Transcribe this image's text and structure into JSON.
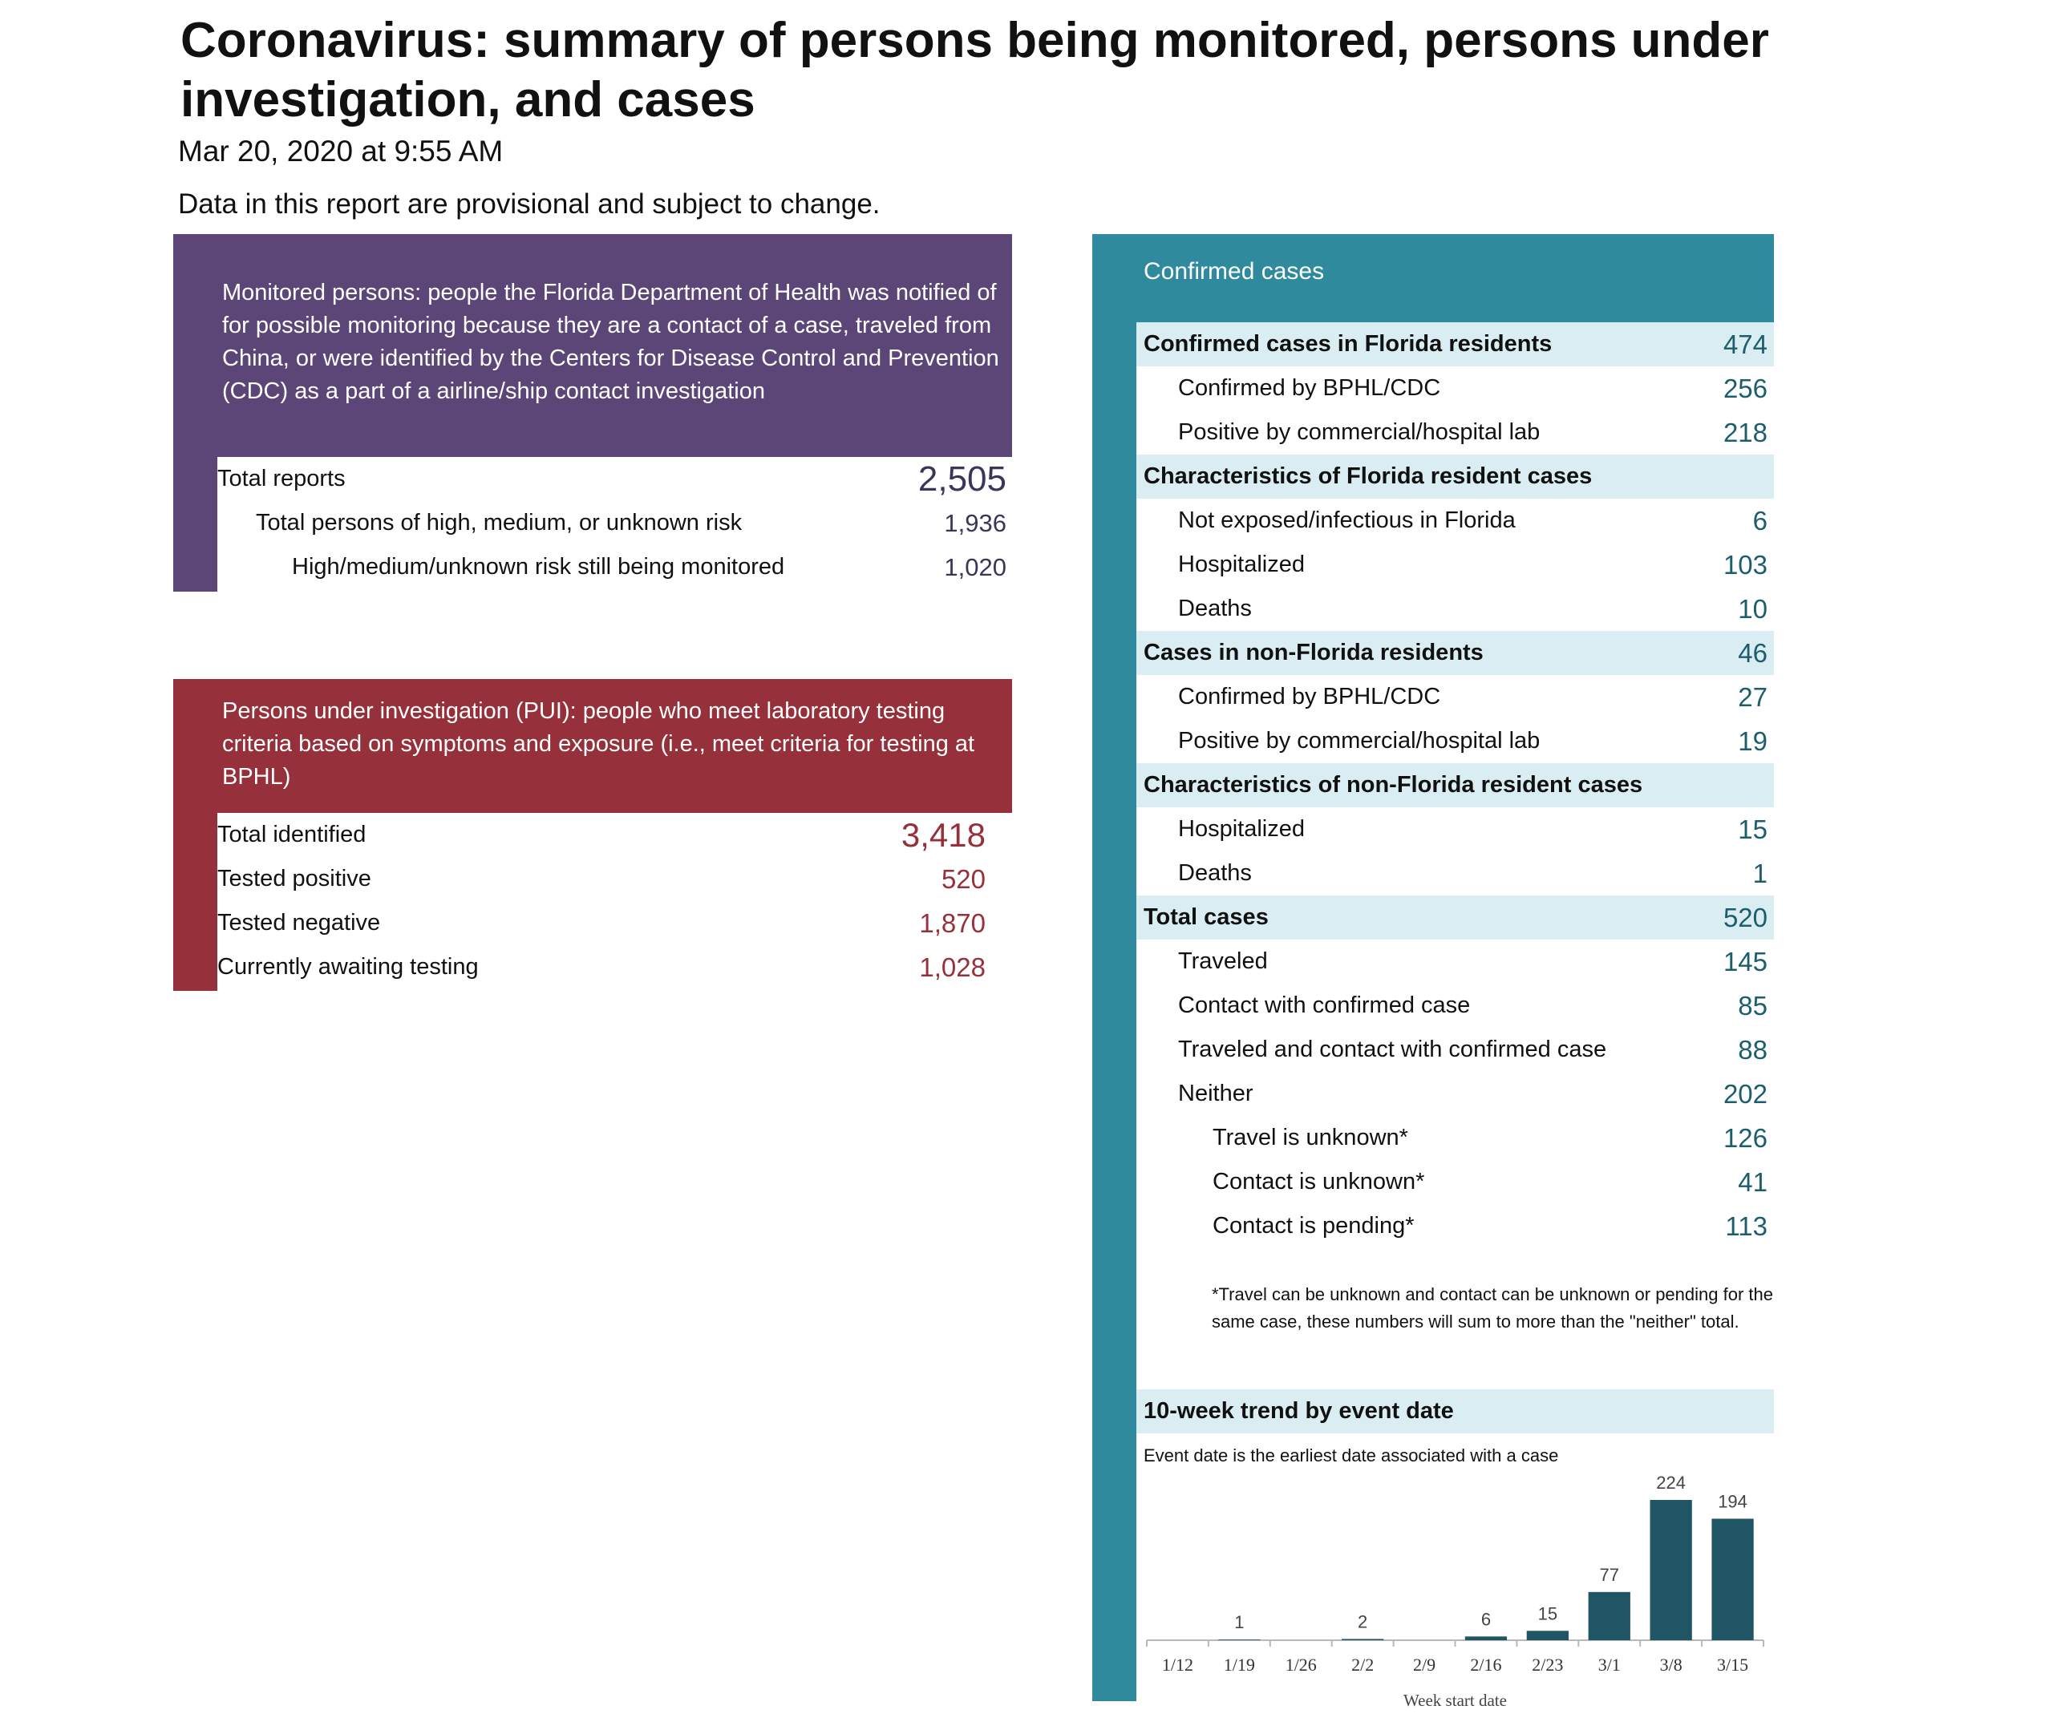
{
  "title": "Coronavirus: summary of persons being monitored, persons under investigation, and cases",
  "timestamp": "Mar 20, 2020 at 9:55 AM",
  "disclaimer": "Data in this report are provisional and subject to change.",
  "monitored": {
    "description": "Monitored persons: people the Florida Department of Health was notified of for possible monitoring because they are a contact of a case, traveled from China, or were identified by the Centers for Disease Control and Prevention (CDC) as a part of a airline/ship contact investigation",
    "total_label": "Total reports",
    "total_value": "2,505",
    "risk_label": "Total persons of high, medium, or unknown risk",
    "risk_value": "1,936",
    "still_label": "High/medium/unknown risk still being monitored",
    "still_value": "1,020"
  },
  "pui": {
    "description": "Persons under investigation (PUI): people who meet laboratory testing criteria based on symptoms and exposure (i.e., meet criteria for testing at BPHL)",
    "rows": [
      {
        "label": "Total identified",
        "value": "3,418"
      },
      {
        "label": "Tested positive",
        "value": "520"
      },
      {
        "label": "Tested negative",
        "value": "1,870"
      },
      {
        "label": "Currently awaiting testing",
        "value": "1,028"
      }
    ]
  },
  "confirmed": {
    "header": "Confirmed cases",
    "rows": [
      {
        "label": "Confirmed cases in Florida residents",
        "value": "474"
      },
      {
        "label": "Confirmed by BPHL/CDC",
        "value": "256"
      },
      {
        "label": "Positive by commercial/hospital lab",
        "value": "218"
      },
      {
        "label": "Characteristics of Florida resident cases",
        "value": ""
      },
      {
        "label": "Not exposed/infectious in Florida",
        "value": "6"
      },
      {
        "label": "Hospitalized",
        "value": "103"
      },
      {
        "label": "Deaths",
        "value": "10"
      },
      {
        "label": "Cases in non-Florida residents",
        "value": "46"
      },
      {
        "label": "Confirmed by BPHL/CDC",
        "value": "27"
      },
      {
        "label": "Positive by commercial/hospital lab",
        "value": "19"
      },
      {
        "label": "Characteristics of non-Florida resident cases",
        "value": ""
      },
      {
        "label": "Hospitalized",
        "value": "15"
      },
      {
        "label": "Deaths",
        "value": "1"
      },
      {
        "label": "Total cases",
        "value": "520"
      },
      {
        "label": "Traveled",
        "value": "145"
      },
      {
        "label": "Contact with confirmed case",
        "value": "85"
      },
      {
        "label": "Traveled and contact with confirmed case",
        "value": "88"
      },
      {
        "label": "Neither",
        "value": "202"
      },
      {
        "label": "Travel is unknown*",
        "value": "126"
      },
      {
        "label": "Contact is unknown*",
        "value": "41"
      },
      {
        "label": "Contact is pending*",
        "value": "113"
      }
    ],
    "footnote": "*Travel can be unknown and contact can be unknown or pending for the same case, these numbers will sum to more than the \"neither\" total."
  },
  "trend": {
    "header": "10-week trend by event date",
    "note": "Event date is the earliest date associated with a case"
  },
  "chart_data": {
    "type": "bar",
    "categories": [
      "1/12",
      "1/19",
      "1/26",
      "2/2",
      "2/9",
      "2/16",
      "2/23",
      "3/1",
      "3/8",
      "3/15"
    ],
    "values": [
      0,
      1,
      0,
      2,
      0,
      6,
      15,
      77,
      224,
      194
    ],
    "labels": [
      "",
      "1",
      "",
      "2",
      "",
      "6",
      "15",
      "77",
      "224",
      "194"
    ],
    "xlabel": "Week start date",
    "ylabel": "",
    "bar_color": "#1f5565"
  },
  "colors": {
    "monitored": "#5c4677",
    "pui": "#96303a",
    "confirmed": "#2e8a9c",
    "header_band": "#d9edf2"
  }
}
